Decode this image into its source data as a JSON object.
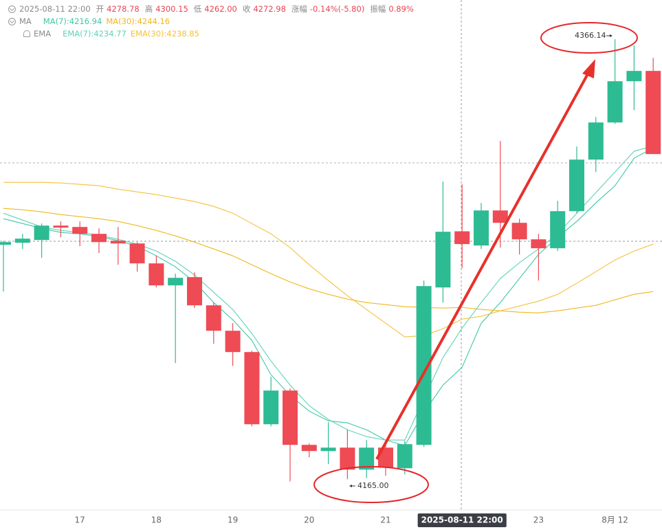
{
  "chart_data": {
    "type": "candlestick",
    "header": {
      "time": "2025-08-11 22:00",
      "fields": [
        {
          "label": "开",
          "value": "4278.78"
        },
        {
          "label": "高",
          "value": "4300.15"
        },
        {
          "label": "低",
          "value": "4262.00"
        },
        {
          "label": "收",
          "value": "4272.98"
        },
        {
          "label": "涨幅",
          "value": "-0.14%(-5.80)"
        },
        {
          "label": "振幅",
          "value": "0.89%"
        }
      ]
    },
    "indicator_groups": [
      "MA",
      "EMA"
    ],
    "categories": [
      null,
      null,
      null,
      null,
      "17",
      null,
      null,
      null,
      "18",
      null,
      null,
      null,
      "19",
      null,
      null,
      null,
      "20",
      null,
      null,
      null,
      "21",
      null,
      null,
      null,
      "2025-08-11 22:00",
      null,
      null,
      null,
      "23",
      null,
      null,
      null,
      "8月 12",
      null,
      null
    ],
    "open": [
      4272.63,
      4273.57,
      4274.82,
      4281.38,
      4280.76,
      4277.63,
      4274.5,
      4273.25,
      4264.19,
      4254.18,
      4257.93,
      4245.11,
      4233.54,
      4223.85,
      4191.01,
      4206.34,
      4181.63,
      4178.82,
      4180.38,
      4170.38,
      4180.38,
      4171.0,
      4181.63,
      4253.24,
      4278.78,
      4272.32,
      4288.26,
      4282.64,
      4275.13,
      4271.07,
      4287.95,
      4311.4,
      4328.29,
      4347.05,
      4351.74
    ],
    "high": [
      4274.5,
      4277.63,
      4282.32,
      4283.26,
      4283.26,
      4280.13,
      4280.76,
      4273.88,
      4267.63,
      4259.5,
      4260.12,
      4246.36,
      4236.98,
      4224.47,
      4212.59,
      4207.27,
      4182.26,
      4191.95,
      4188.51,
      4183.82,
      4183.82,
      4183.51,
      4256.37,
      4301.4,
      4300.15,
      4291.7,
      4319.85,
      4284.51,
      4277.63,
      4292.64,
      4317.34,
      4330.79,
      4366.14,
      4363.31,
      4357.68
    ],
    "low": [
      4251.37,
      4270.75,
      4266.69,
      4276.07,
      4272.0,
      4268.88,
      4263.56,
      4260.43,
      4253.24,
      4218.84,
      4243.86,
      4227.6,
      4217.59,
      4190.08,
      4190.08,
      4165.0,
      4176.0,
      4172.88,
      4166.0,
      4166.5,
      4167.56,
      4168.19,
      4180.69,
      4246.36,
      4262.0,
      4270.75,
      4271.38,
      4268.25,
      4256.37,
      4269.81,
      4287.01,
      4305.77,
      4327.66,
      4333.92,
      4313.91
    ],
    "close": [
      4273.88,
      4275.44,
      4281.38,
      4280.45,
      4277.63,
      4273.88,
      4273.25,
      4264.19,
      4254.18,
      4257.62,
      4245.11,
      4233.54,
      4223.85,
      4191.01,
      4206.34,
      4181.63,
      4178.82,
      4180.38,
      4170.38,
      4180.38,
      4171.31,
      4181.95,
      4253.87,
      4278.57,
      4272.98,
      4288.26,
      4282.64,
      4275.13,
      4271.07,
      4287.95,
      4311.4,
      4328.29,
      4347.05,
      4351.74,
      4313.91
    ],
    "up_color": "#2dbb93",
    "down_color": "#ee4b55",
    "ylim": [
      4152,
      4384
    ],
    "series": [
      {
        "name": "MA(7):4216.94",
        "color": "#3ec7a6",
        "values": [
          4284.51,
          4282.32,
          4280.13,
          4278.26,
          4277.63,
          4276.38,
          4274.5,
          4272.0,
          4267.63,
          4262.62,
          4255.74,
          4246.36,
          4238.54,
          4229.16,
          4213.53,
          4204.15,
          4196.96,
          4192.58,
          4191.64,
          4188.51,
          4183.82,
          4181.32,
          4196.33,
          4208.84,
          4216.94,
          4236.98,
          4246.36,
          4257.31,
          4268.25,
          4276.07,
          4283.26,
          4291.7,
          4299.52,
          4312.03,
          4316.72
        ]
      },
      {
        "name": "MA(30):4244.16",
        "color": "#f1b71c",
        "values": [
          4289.2,
          4288.58,
          4287.64,
          4286.39,
          4285.45,
          4284.51,
          4283.26,
          4281.38,
          4279.2,
          4276.69,
          4273.88,
          4270.75,
          4267.63,
          4263.56,
          4259.5,
          4255.74,
          4252.62,
          4250.11,
          4247.93,
          4246.36,
          4245.42,
          4244.49,
          4244.17,
          4243.86,
          4244.16,
          4243.23,
          4242.61,
          4241.98,
          4241.67,
          4242.61,
          4243.86,
          4245.11,
          4247.61,
          4250.11,
          4251.37
        ]
      },
      {
        "name": "EMA(7):4234.77",
        "color": "#5fd2b6",
        "values": [
          4287.01,
          4283.89,
          4280.76,
          4279.2,
          4278.26,
          4277.01,
          4275.13,
          4272.94,
          4269.81,
          4265.12,
          4258.87,
          4251.05,
          4243.23,
          4232.29,
          4219.78,
          4208.84,
          4199.46,
          4193.2,
          4188.51,
          4185.39,
          4183.82,
          4183.82,
          4202.58,
          4221.35,
          4234.77,
          4246.36,
          4257.31,
          4264.5,
          4270.75,
          4277.63,
          4287.01,
          4296.39,
          4305.77,
          4315.16,
          4317.66
        ]
      },
      {
        "name": "EMA(30):4238.85",
        "color": "#f3c13a",
        "values": [
          4301.08,
          4301.08,
          4301.08,
          4300.77,
          4300.15,
          4299.52,
          4297.96,
          4296.71,
          4295.46,
          4293.89,
          4292.33,
          4290.14,
          4287.01,
          4282.32,
          4277.63,
          4271.38,
          4263.56,
          4256.37,
          4249.49,
          4243.23,
          4236.98,
          4230.73,
          4231.35,
          4234.48,
          4238.85,
          4240.11,
          4242.61,
          4244.8,
          4246.99,
          4250.11,
          4255.12,
          4260.43,
          4265.75,
          4269.81,
          4272.94
        ]
      }
    ],
    "annotations": {
      "high": "4366.14",
      "low": "4165.00"
    }
  }
}
